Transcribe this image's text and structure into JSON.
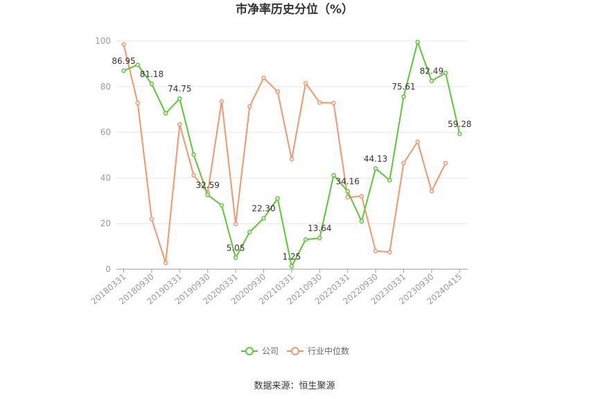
{
  "chart_data": {
    "type": "line",
    "title": "市净率历史分位（%）",
    "source": "数据来源：恒生聚源",
    "ylim": [
      0,
      100
    ],
    "yticks": [
      0,
      20,
      40,
      60,
      80,
      100
    ],
    "grid": true,
    "legend_position": "bottom-center",
    "x": [
      "20180331",
      "20180630",
      "20180930",
      "20181231",
      "20190331",
      "20190630",
      "20190930",
      "20191231",
      "20200331",
      "20200630",
      "20200930",
      "20201231",
      "20210331",
      "20210630",
      "20210930",
      "20211231",
      "20220331",
      "20220630",
      "20220930",
      "20221231",
      "20230331",
      "20230630",
      "20230930",
      "20231231",
      "20240415"
    ],
    "xtick_labels": [
      "20180331",
      "20180930",
      "20190331",
      "20190930",
      "20200331",
      "20200930",
      "20210331",
      "20210930",
      "20220331",
      "20220930",
      "20230331",
      "20230930",
      "20240415"
    ],
    "series": [
      {
        "name": "公司",
        "color": "#5ac832",
        "values": [
          86.95,
          89.5,
          81.18,
          68.3,
          74.75,
          50.2,
          32.59,
          28.0,
          5.05,
          16.3,
          22.3,
          31.0,
          1.25,
          13.0,
          13.64,
          41.2,
          34.16,
          21.0,
          44.13,
          39.0,
          75.61,
          99.5,
          82.49,
          86.0,
          59.28
        ],
        "data_labels": {
          "0": "86.95",
          "2": "81.18",
          "4": "74.75",
          "6": "32.59",
          "8": "5.05",
          "10": "22.30",
          "12": "1.25",
          "14": "13.64",
          "16": "34.16",
          "18": "44.13",
          "20": "75.61",
          "22": "82.49",
          "24": "59.28"
        }
      },
      {
        "name": "行业中位数",
        "color": "#f5956a",
        "values": [
          98.5,
          72.8,
          22.0,
          2.8,
          63.5,
          41.2,
          33.5,
          73.5,
          19.8,
          71.3,
          83.8,
          77.8,
          48.2,
          81.5,
          73.0,
          72.8,
          31.5,
          32.0,
          8.0,
          7.5,
          46.5,
          55.8,
          34.2,
          46.5,
          null
        ]
      }
    ]
  }
}
